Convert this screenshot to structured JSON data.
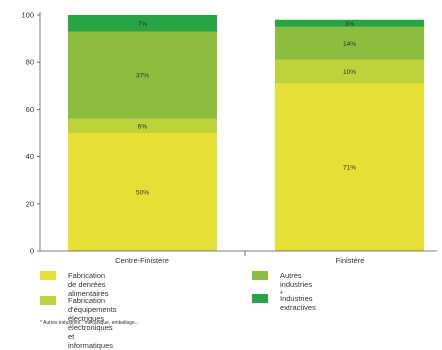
{
  "chart_data": {
    "type": "bar",
    "stacked": true,
    "categories": [
      "Centre-Finistère",
      "Finistère"
    ],
    "series": [
      {
        "name": "Fabrication de denrées alimentaires",
        "values": [
          50,
          71
        ],
        "labels": [
          "50%",
          "71%"
        ],
        "color": "#e6e036"
      },
      {
        "name": "Fabrication d'équipements électriques\nélectroniques et informatiques",
        "values": [
          6,
          10
        ],
        "labels": [
          "6%",
          "10%"
        ],
        "color": "#bed239"
      },
      {
        "name": "Autres industries *",
        "values": [
          37,
          14
        ],
        "labels": [
          "37%",
          "14%"
        ],
        "color": "#8cbd3f"
      },
      {
        "name": "Industries extractives",
        "values": [
          7,
          3
        ],
        "labels": [
          "7%",
          "3%"
        ],
        "color": "#27a544"
      }
    ],
    "ylim": [
      0,
      100
    ],
    "yticks": [
      "0",
      "20",
      "40",
      "60",
      "80",
      "100"
    ],
    "legend_position": "bottom",
    "footnote": "* Autres industries : mécanique, emballage..."
  }
}
